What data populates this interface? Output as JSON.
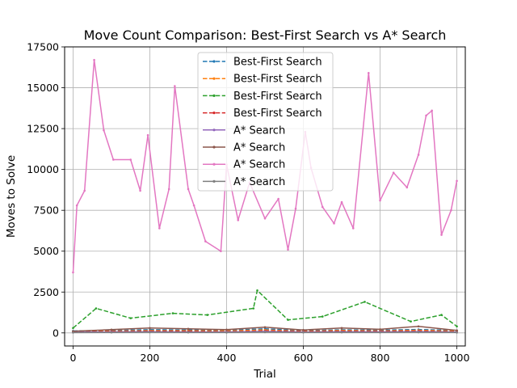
{
  "chart_data": {
    "type": "line",
    "title": "Move Count Comparison: Best-First Search vs A* Search",
    "xlabel": "Trial",
    "ylabel": "Moves to Solve",
    "xlim": [
      -22,
      1022
    ],
    "ylim": [
      -800,
      17500
    ],
    "xticks": [
      0,
      200,
      400,
      600,
      800,
      1000
    ],
    "yticks": [
      0,
      2500,
      5000,
      7500,
      10000,
      12500,
      15000,
      17500
    ],
    "xtick_labels": [
      "0",
      "200",
      "400",
      "600",
      "800",
      "1000"
    ],
    "ytick_labels": [
      "0",
      "2500",
      "5000",
      "7500",
      "10000",
      "12500",
      "15000",
      "17500"
    ],
    "grid": true,
    "legend_position": "upper center",
    "series": [
      {
        "name": "Best-First Search",
        "color": "#1f77b4",
        "linestyle": "dashed",
        "marker": "point",
        "x": [
          0,
          100,
          200,
          300,
          400,
          500,
          600,
          700,
          800,
          900,
          1000
        ],
        "values": [
          120,
          150,
          200,
          180,
          160,
          250,
          140,
          190,
          170,
          210,
          150
        ]
      },
      {
        "name": "Best-First Search",
        "color": "#ff7f0e",
        "linestyle": "dashed",
        "marker": "point",
        "x": [
          0,
          100,
          200,
          300,
          400,
          500,
          600,
          700,
          800,
          900,
          1000
        ],
        "values": [
          90,
          110,
          140,
          130,
          120,
          180,
          100,
          150,
          120,
          160,
          110
        ]
      },
      {
        "name": "Best-First Search",
        "color": "#2ca02c",
        "linestyle": "dashed",
        "marker": "point",
        "x": [
          0,
          60,
          150,
          260,
          350,
          470,
          480,
          560,
          650,
          760,
          880,
          960,
          1000
        ],
        "values": [
          300,
          1500,
          900,
          1200,
          1100,
          1500,
          2600,
          800,
          1000,
          1900,
          700,
          1100,
          400
        ]
      },
      {
        "name": "Best-First Search",
        "color": "#d62728",
        "linestyle": "dashed",
        "marker": "point",
        "x": [
          0,
          100,
          200,
          300,
          400,
          500,
          600,
          700,
          800,
          900,
          1000
        ],
        "values": [
          60,
          80,
          100,
          90,
          70,
          120,
          80,
          100,
          90,
          110,
          70
        ]
      },
      {
        "name": "A* Search",
        "color": "#9467bd",
        "linestyle": "solid",
        "marker": "point",
        "x": [
          0,
          100,
          200,
          300,
          400,
          500,
          600,
          700,
          800,
          900,
          1000
        ],
        "values": [
          40,
          60,
          70,
          50,
          60,
          90,
          50,
          70,
          60,
          80,
          50
        ]
      },
      {
        "name": "A* Search",
        "color": "#8c564b",
        "linestyle": "solid",
        "marker": "point",
        "x": [
          0,
          100,
          200,
          300,
          400,
          500,
          600,
          700,
          800,
          900,
          1000
        ],
        "values": [
          100,
          200,
          300,
          250,
          200,
          350,
          180,
          300,
          220,
          400,
          150
        ]
      },
      {
        "name": "A* Search",
        "color": "#e377c2",
        "linestyle": "solid",
        "marker": "point",
        "x": [
          0,
          10,
          30,
          55,
          80,
          105,
          150,
          175,
          195,
          225,
          250,
          265,
          300,
          315,
          345,
          385,
          400,
          430,
          460,
          500,
          535,
          560,
          580,
          605,
          620,
          650,
          680,
          700,
          730,
          770,
          800,
          835,
          870,
          900,
          920,
          935,
          960,
          985,
          1000
        ],
        "values": [
          3700,
          7800,
          8700,
          16700,
          12400,
          10600,
          10600,
          8700,
          12100,
          6400,
          8800,
          15100,
          8800,
          7800,
          5600,
          5000,
          10300,
          6900,
          9200,
          7000,
          8200,
          5100,
          7600,
          12300,
          10100,
          7700,
          6700,
          8000,
          6400,
          15900,
          8100,
          9800,
          8900,
          10900,
          13300,
          13600,
          6000,
          7500,
          9300
        ]
      },
      {
        "name": "A* Search",
        "color": "#7f7f7f",
        "linestyle": "solid",
        "marker": "point",
        "x": [
          0,
          100,
          200,
          300,
          400,
          500,
          600,
          700,
          800,
          900,
          1000
        ],
        "values": [
          20,
          30,
          40,
          30,
          25,
          45,
          30,
          35,
          30,
          40,
          25
        ]
      }
    ]
  }
}
